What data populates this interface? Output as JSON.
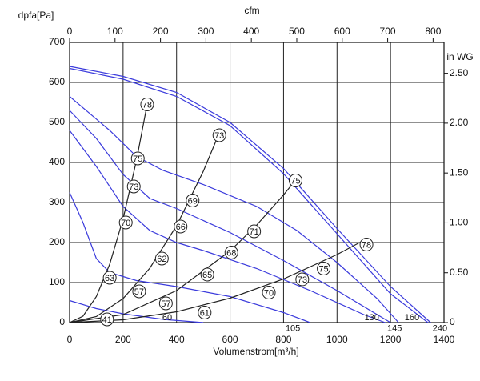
{
  "chart_data": {
    "type": "line",
    "ylabel": "dpfa[Pa]",
    "xlabel": "Volumenstrom[m³/h]",
    "x2label": "cfm",
    "y2label": "in WG",
    "xlim": [
      0,
      1400
    ],
    "xticks": [
      0,
      200,
      400,
      600,
      800,
      1000,
      1200,
      1400
    ],
    "ylim": [
      0,
      700
    ],
    "yticks": [
      0,
      100,
      200,
      300,
      400,
      500,
      600,
      700
    ],
    "x2lim": [
      0,
      824
    ],
    "x2ticks": [
      0,
      100,
      200,
      300,
      400,
      500,
      600,
      700,
      800
    ],
    "y2lim": [
      0,
      2.81
    ],
    "y2ticks": [
      0,
      {
        "value": 0.5,
        "label": "0.50"
      },
      {
        "value": 1,
        "label": "1.00"
      },
      {
        "value": 1.5,
        "label": "1.50"
      },
      {
        "value": 2,
        "label": "2.00"
      },
      {
        "value": 2.5,
        "label": "2.50"
      }
    ],
    "grid": true,
    "series": [
      {
        "color": "#3b3bdc",
        "x": [
          0,
          200,
          400,
          600,
          800,
          1000,
          1200,
          1350
        ],
        "values": [
          640,
          615,
          575,
          500,
          385,
          235,
          90,
          0
        ]
      },
      {
        "color": "#3b3bdc",
        "x": [
          0,
          200,
          400,
          600,
          800,
          1000,
          1200,
          1340
        ],
        "values": [
          635,
          608,
          565,
          492,
          372,
          222,
          72,
          0
        ]
      },
      {
        "color": "#3b3bdc",
        "x": [
          0,
          150,
          250,
          350,
          500,
          700,
          850,
          1000,
          1150,
          1230
        ],
        "values": [
          565,
          480,
          415,
          380,
          345,
          290,
          230,
          150,
          60,
          0
        ]
      },
      {
        "color": "#3b3bdc",
        "x": [
          0,
          100,
          200,
          300,
          400,
          600,
          800,
          1000,
          1200
        ],
        "values": [
          530,
          460,
          370,
          310,
          285,
          225,
          155,
          80,
          0
        ]
      },
      {
        "color": "#3b3bdc",
        "x": [
          0,
          100,
          200,
          300,
          400,
          500,
          700,
          900,
          1100,
          1180
        ],
        "values": [
          480,
          390,
          290,
          230,
          200,
          180,
          135,
          80,
          20,
          0
        ]
      },
      {
        "color": "#3b3bdc",
        "x": [
          0,
          50,
          100,
          150,
          250,
          400,
          600,
          800,
          900
        ],
        "values": [
          325,
          250,
          160,
          125,
          105,
          90,
          65,
          25,
          0
        ]
      },
      {
        "color": "#3b3bdc",
        "x": [
          0,
          100,
          200,
          350,
          500
        ],
        "values": [
          55,
          35,
          22,
          8,
          0
        ]
      },
      {
        "color": "#222222",
        "x": [
          0,
          50,
          100,
          150,
          200,
          250,
          290
        ],
        "values": [
          0,
          16,
          65,
          146,
          259,
          405,
          545
        ]
      },
      {
        "color": "#222222",
        "x": [
          0,
          100,
          200,
          300,
          400,
          500,
          560
        ],
        "values": [
          0,
          15,
          60,
          136,
          242,
          378,
          474
        ]
      },
      {
        "color": "#222222",
        "x": [
          0,
          200,
          400,
          600,
          700,
          800,
          850
        ],
        "values": [
          0,
          20,
          80,
          179,
          244,
          319,
          360
        ]
      },
      {
        "color": "#222222",
        "x": [
          0,
          200,
          400,
          600,
          800,
          1000,
          1110
        ],
        "values": [
          0,
          7,
          27,
          61,
          109,
          170,
          209
        ]
      }
    ],
    "efficiency_labels": [
      {
        "x": 290,
        "y": 545,
        "value": 78
      },
      {
        "x": 560,
        "y": 468,
        "value": 73
      },
      {
        "x": 845,
        "y": 355,
        "value": 75
      },
      {
        "x": 1110,
        "y": 195,
        "value": 78
      },
      {
        "x": 255,
        "y": 410,
        "value": 75
      },
      {
        "x": 240,
        "y": 340,
        "value": 73
      },
      {
        "x": 460,
        "y": 305,
        "value": 69
      },
      {
        "x": 690,
        "y": 228,
        "value": 71
      },
      {
        "x": 210,
        "y": 250,
        "value": 70
      },
      {
        "x": 415,
        "y": 240,
        "value": 66
      },
      {
        "x": 605,
        "y": 175,
        "value": 68
      },
      {
        "x": 345,
        "y": 160,
        "value": 62
      },
      {
        "x": 515,
        "y": 120,
        "value": 65
      },
      {
        "x": 150,
        "y": 112,
        "value": 63
      },
      {
        "x": 260,
        "y": 78,
        "value": 57
      },
      {
        "x": 870,
        "y": 108,
        "value": 73
      },
      {
        "x": 950,
        "y": 135,
        "value": 75
      },
      {
        "x": 360,
        "y": 48,
        "value": 57
      },
      {
        "x": 505,
        "y": 25,
        "value": 61
      },
      {
        "x": 745,
        "y": 75,
        "value": 70
      },
      {
        "x": 140,
        "y": 8,
        "value": 41
      }
    ],
    "speed_labels": [
      {
        "x": 365,
        "y": 12,
        "value": 60
      },
      {
        "x": 835,
        "y": -15,
        "value": 105
      },
      {
        "x": 1130,
        "y": 12,
        "value": 130
      },
      {
        "x": 1215,
        "y": -15,
        "value": 145
      },
      {
        "x": 1280,
        "y": 12,
        "value": 160
      },
      {
        "x": 1385,
        "y": -15,
        "value": 240
      }
    ]
  }
}
